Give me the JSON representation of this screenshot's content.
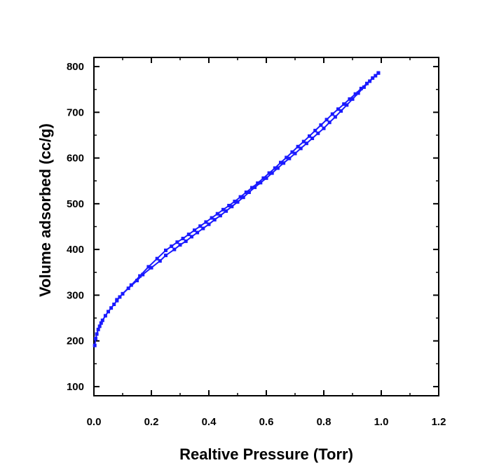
{
  "chart_data": {
    "type": "line",
    "title": "",
    "xlabel": "Realtive Pressure (Torr)",
    "ylabel": "Volume adsorbed (cc/g)",
    "xlim": [
      0.0,
      1.2
    ],
    "ylim": [
      80,
      820
    ],
    "x_ticks": [
      "0.0",
      "0.2",
      "0.4",
      "0.6",
      "0.8",
      "1.0",
      "1.2"
    ],
    "y_ticks": [
      "100",
      "200",
      "300",
      "400",
      "500",
      "600",
      "700",
      "800"
    ],
    "grid": false,
    "legend": "none",
    "color": "#1a1aff",
    "series": [
      {
        "x": [
          0.003,
          0.006,
          0.01,
          0.015,
          0.02,
          0.025,
          0.03,
          0.04,
          0.05,
          0.06,
          0.07,
          0.08,
          0.09,
          0.1,
          0.12,
          0.15,
          0.17,
          0.2,
          0.23,
          0.25,
          0.28,
          0.3,
          0.32,
          0.34,
          0.36,
          0.38,
          0.4,
          0.42,
          0.44,
          0.46,
          0.48,
          0.5,
          0.52,
          0.54,
          0.56,
          0.58,
          0.6,
          0.62,
          0.64,
          0.66,
          0.68,
          0.7,
          0.72,
          0.74,
          0.76,
          0.78,
          0.8,
          0.82,
          0.84,
          0.86,
          0.88,
          0.9,
          0.92,
          0.94,
          0.96,
          0.98,
          0.99
        ],
        "values": [
          190,
          205,
          215,
          225,
          232,
          239,
          245,
          255,
          264,
          272,
          280,
          288,
          296,
          303,
          315,
          332,
          345,
          360,
          375,
          387,
          400,
          410,
          418,
          428,
          437,
          446,
          455,
          465,
          474,
          484,
          494,
          504,
          514,
          525,
          536,
          546,
          556,
          567,
          578,
          589,
          599,
          610,
          621,
          632,
          643,
          654,
          665,
          678,
          690,
          703,
          716,
          729,
          742,
          755,
          768,
          780,
          786
        ]
      },
      {
        "x": [
          0.99,
          0.97,
          0.95,
          0.93,
          0.91,
          0.89,
          0.87,
          0.85,
          0.83,
          0.81,
          0.79,
          0.77,
          0.75,
          0.73,
          0.71,
          0.69,
          0.67,
          0.65,
          0.63,
          0.61,
          0.59,
          0.57,
          0.55,
          0.53,
          0.51,
          0.49,
          0.47,
          0.45,
          0.43,
          0.41,
          0.39,
          0.37,
          0.35,
          0.33,
          0.31,
          0.29,
          0.27,
          0.25,
          0.22,
          0.19,
          0.16,
          0.13,
          0.1,
          0.08
        ],
        "values": [
          786,
          775,
          763,
          752,
          740,
          729,
          718,
          707,
          696,
          684,
          672,
          660,
          648,
          636,
          625,
          613,
          601,
          590,
          578,
          567,
          556,
          545,
          535,
          525,
          515,
          505,
          496,
          487,
          478,
          469,
          460,
          451,
          442,
          433,
          424,
          416,
          407,
          398,
          380,
          362,
          342,
          322,
          303,
          290
        ]
      }
    ]
  }
}
